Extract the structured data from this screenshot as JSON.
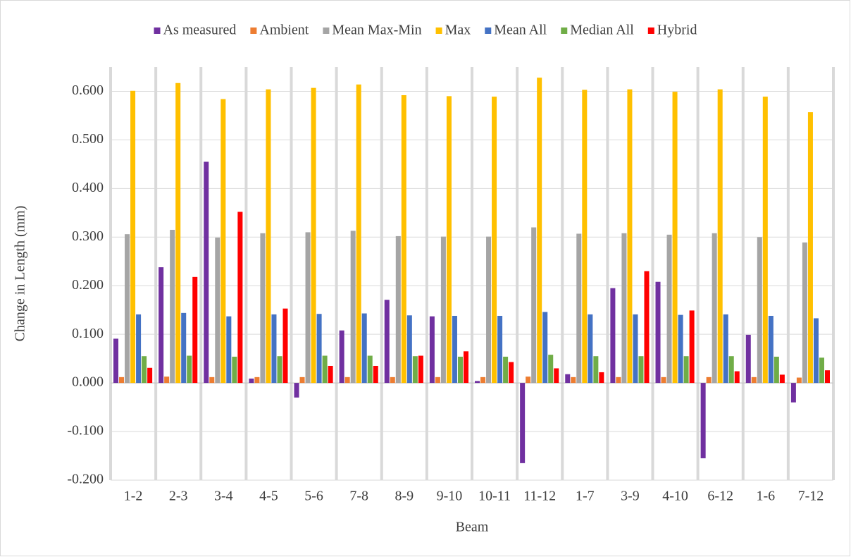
{
  "chart_data": {
    "type": "bar",
    "y_label": "Change in Length (mm)",
    "x_label": "Beam",
    "categories": [
      "1-2",
      "2-3",
      "3-4",
      "4-5",
      "5-6",
      "7-8",
      "8-9",
      "9-10",
      "10-11",
      "11-12",
      "1-7",
      "3-9",
      "4-10",
      "6-12",
      "1-6",
      "7-12"
    ],
    "series": [
      {
        "name": "As measured",
        "color": "#7030a0",
        "values": [
          0.091,
          0.238,
          0.455,
          0.009,
          -0.03,
          0.108,
          0.171,
          0.137,
          0.004,
          -0.165,
          0.018,
          0.195,
          0.208,
          -0.155,
          0.099,
          -0.04
        ]
      },
      {
        "name": "Ambient",
        "color": "#ed7d31",
        "values": [
          0.012,
          0.013,
          0.012,
          0.012,
          0.012,
          0.012,
          0.012,
          0.012,
          0.012,
          0.013,
          0.012,
          0.012,
          0.012,
          0.012,
          0.012,
          0.011
        ]
      },
      {
        "name": "Mean Max-Min",
        "color": "#a5a5a5",
        "values": [
          0.306,
          0.315,
          0.299,
          0.308,
          0.31,
          0.313,
          0.302,
          0.301,
          0.301,
          0.32,
          0.307,
          0.308,
          0.305,
          0.308,
          0.3,
          0.289
        ]
      },
      {
        "name": "Max",
        "color": "#ffc000",
        "values": [
          0.601,
          0.617,
          0.584,
          0.604,
          0.607,
          0.614,
          0.592,
          0.59,
          0.589,
          0.628,
          0.603,
          0.604,
          0.599,
          0.604,
          0.589,
          0.557
        ]
      },
      {
        "name": "Mean All",
        "color": "#4472c4",
        "values": [
          0.141,
          0.144,
          0.137,
          0.141,
          0.142,
          0.143,
          0.139,
          0.138,
          0.138,
          0.146,
          0.141,
          0.141,
          0.14,
          0.141,
          0.138,
          0.133
        ]
      },
      {
        "name": "Median All",
        "color": "#70ad47",
        "values": [
          0.055,
          0.056,
          0.054,
          0.055,
          0.056,
          0.056,
          0.055,
          0.054,
          0.054,
          0.058,
          0.055,
          0.055,
          0.055,
          0.055,
          0.054,
          0.052
        ]
      },
      {
        "name": "Hybrid",
        "color": "#ff0000",
        "values": [
          0.031,
          0.218,
          0.352,
          0.153,
          0.035,
          0.035,
          0.056,
          0.065,
          0.043,
          0.03,
          0.022,
          0.23,
          0.149,
          0.024,
          0.017,
          0.026
        ]
      }
    ],
    "ylim": [
      -0.2,
      0.65
    ],
    "yticks": [
      {
        "value": -0.2,
        "label": "-0.200"
      },
      {
        "value": -0.1,
        "label": "-0.100"
      },
      {
        "value": 0,
        "label": "0.000"
      },
      {
        "value": 0.1,
        "label": "0.100"
      },
      {
        "value": 0.2,
        "label": "0.200"
      },
      {
        "value": 0.3,
        "label": "0.300"
      },
      {
        "value": 0.4,
        "label": "0.400"
      },
      {
        "value": 0.5,
        "label": "0.500"
      },
      {
        "value": 0.6,
        "label": "0.600"
      }
    ],
    "grid": true,
    "legend": "top"
  }
}
